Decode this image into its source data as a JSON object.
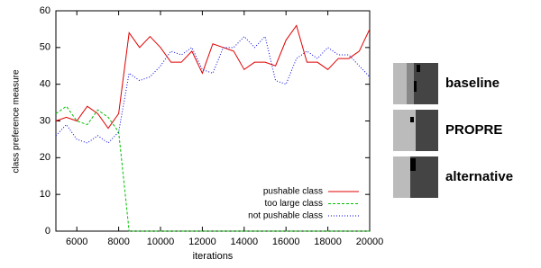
{
  "chart_data": {
    "type": "line",
    "xlabel": "iterations",
    "ylabel": "class preference measure",
    "x": [
      5000,
      5500,
      6000,
      6500,
      7000,
      7500,
      8000,
      8500,
      9000,
      9500,
      10000,
      10500,
      11000,
      11500,
      12000,
      12500,
      13000,
      13500,
      14000,
      14500,
      15000,
      15500,
      16000,
      16500,
      17000,
      17500,
      18000,
      18500,
      19000,
      19500,
      20000
    ],
    "series": [
      {
        "name": "pushable class",
        "color": "#e00000",
        "dash": "none",
        "values": [
          30,
          31,
          30,
          34,
          32,
          28,
          32,
          54,
          50,
          53,
          50,
          46,
          46,
          49,
          43,
          51,
          50,
          49,
          44,
          46,
          46,
          45,
          52,
          56,
          46,
          46,
          44,
          47,
          47,
          49,
          55
        ]
      },
      {
        "name": "too large class",
        "color": "#00c000",
        "dash": "3,2",
        "values": [
          32,
          34,
          30,
          29,
          33,
          31,
          27,
          0,
          0,
          0,
          0,
          0,
          0,
          0,
          0,
          0,
          0,
          0,
          0,
          0,
          0,
          0,
          0,
          0,
          0,
          0,
          0,
          0,
          0,
          0,
          0
        ]
      },
      {
        "name": "not pushable class",
        "color": "#0000e0",
        "dash": "1,2",
        "values": [
          26,
          29,
          25,
          24,
          26,
          24,
          27,
          43,
          41,
          42,
          45,
          49,
          48,
          50,
          44,
          43,
          50,
          50,
          53,
          50,
          53,
          41,
          40,
          47,
          49,
          47,
          50,
          48,
          48,
          45,
          42
        ]
      }
    ],
    "xlim": [
      5000,
      20000
    ],
    "xticks": [
      6000,
      8000,
      10000,
      12000,
      14000,
      16000,
      18000,
      20000
    ],
    "ylim": [
      0,
      60
    ],
    "yticks": [
      0,
      10,
      20,
      30,
      40,
      50,
      60
    ],
    "legend": "lower right"
  },
  "panel": {
    "labels": [
      "baseline",
      "PROPRE",
      "alternative"
    ]
  }
}
